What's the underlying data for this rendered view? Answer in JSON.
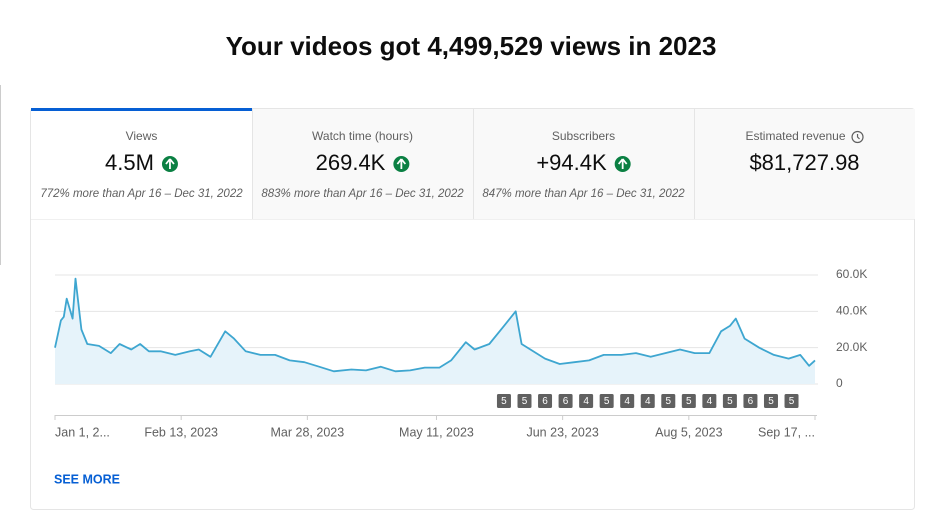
{
  "header": {
    "title": "Your videos got 4,499,529 views in 2023"
  },
  "tabs": [
    {
      "label": "Views",
      "value": "4.5M",
      "comparison": "772% more than Apr 16 – Dec 31, 2022"
    },
    {
      "label": "Watch time (hours)",
      "value": "269.4K",
      "comparison": "883% more than Apr 16 – Dec 31, 2022"
    },
    {
      "label": "Subscribers",
      "value": "+94.4K",
      "comparison": "847% more than Apr 16 – Dec 31, 2022"
    },
    {
      "label": "Estimated revenue",
      "value": "$81,727.98"
    }
  ],
  "chart_data": {
    "type": "line",
    "x": [
      "2023-01-01",
      "2023-01-03",
      "2023-01-04",
      "2023-01-05",
      "2023-01-07",
      "2023-01-08",
      "2023-01-10",
      "2023-01-12",
      "2023-01-16",
      "2023-01-20",
      "2023-01-23",
      "2023-01-27",
      "2023-01-30",
      "2023-02-02",
      "2023-02-06",
      "2023-02-11",
      "2023-02-16",
      "2023-02-19",
      "2023-02-23",
      "2023-02-28",
      "2023-03-03",
      "2023-03-07",
      "2023-03-12",
      "2023-03-17",
      "2023-03-22",
      "2023-03-27",
      "2023-04-01",
      "2023-04-06",
      "2023-04-12",
      "2023-04-17",
      "2023-04-22",
      "2023-04-27",
      "2023-05-02",
      "2023-05-07",
      "2023-05-12",
      "2023-05-16",
      "2023-05-21",
      "2023-05-24",
      "2023-05-29",
      "2023-06-03",
      "2023-06-07",
      "2023-06-09",
      "2023-06-12",
      "2023-06-17",
      "2023-06-22",
      "2023-06-27",
      "2023-07-02",
      "2023-07-07",
      "2023-07-13",
      "2023-07-18",
      "2023-07-23",
      "2023-07-28",
      "2023-08-02",
      "2023-08-07",
      "2023-08-12",
      "2023-08-16",
      "2023-08-19",
      "2023-08-21",
      "2023-08-24",
      "2023-08-29",
      "2023-09-03",
      "2023-09-08",
      "2023-09-12",
      "2023-09-15",
      "2023-09-17"
    ],
    "series": [
      {
        "color": "#3ea6d0",
        "fill": "#e6f3fa",
        "values": [
          20000,
          35000,
          37000,
          47000,
          36000,
          58000,
          30000,
          22000,
          21000,
          17000,
          22000,
          19000,
          22000,
          18000,
          18000,
          16000,
          18000,
          19000,
          15000,
          29000,
          25000,
          18000,
          16000,
          16000,
          13000,
          12000,
          9500,
          7000,
          8000,
          7500,
          9500,
          7000,
          7500,
          9000,
          9000,
          13000,
          23000,
          19000,
          22000,
          32000,
          40000,
          22000,
          19000,
          14000,
          11000,
          12000,
          13000,
          16000,
          16000,
          17000,
          15000,
          17000,
          19000,
          17000,
          17000,
          29000,
          32000,
          36000,
          25000,
          20000,
          16000,
          14000,
          16000,
          10000,
          13000
        ]
      }
    ],
    "xlim": [
      "2023-01-01",
      "2023-09-17"
    ],
    "xticks": [
      {
        "value": "2023-01-01",
        "label": "Jan 1, 2..."
      },
      {
        "value": "2023-02-13",
        "label": "Feb 13, 2023"
      },
      {
        "value": "2023-03-28",
        "label": "Mar 28, 2023"
      },
      {
        "value": "2023-05-11",
        "label": "May 11, 2023"
      },
      {
        "value": "2023-06-23",
        "label": "Jun 23, 2023"
      },
      {
        "value": "2023-08-05",
        "label": "Aug 5, 2023"
      },
      {
        "value": "2023-09-17",
        "label": "Sep 17, ..."
      }
    ],
    "ylim": [
      0,
      60000
    ],
    "yticks": [
      0,
      {
        "value": 20000,
        "label": "20.0K"
      },
      {
        "value": 40000,
        "label": "40.0K"
      },
      {
        "value": 60000,
        "label": "60.0K"
      }
    ],
    "grid": true,
    "markers": {
      "x": [
        "2023-06-03",
        "2023-06-10",
        "2023-06-17",
        "2023-06-24",
        "2023-07-01",
        "2023-07-08",
        "2023-07-15",
        "2023-07-22",
        "2023-07-29",
        "2023-08-05",
        "2023-08-12",
        "2023-08-19",
        "2023-08-26",
        "2023-09-02",
        "2023-09-09"
      ],
      "counts": [
        5,
        5,
        6,
        6,
        4,
        5,
        4,
        4,
        5,
        5,
        4,
        5,
        6,
        5,
        5
      ]
    }
  },
  "see_more": "SEE MORE"
}
